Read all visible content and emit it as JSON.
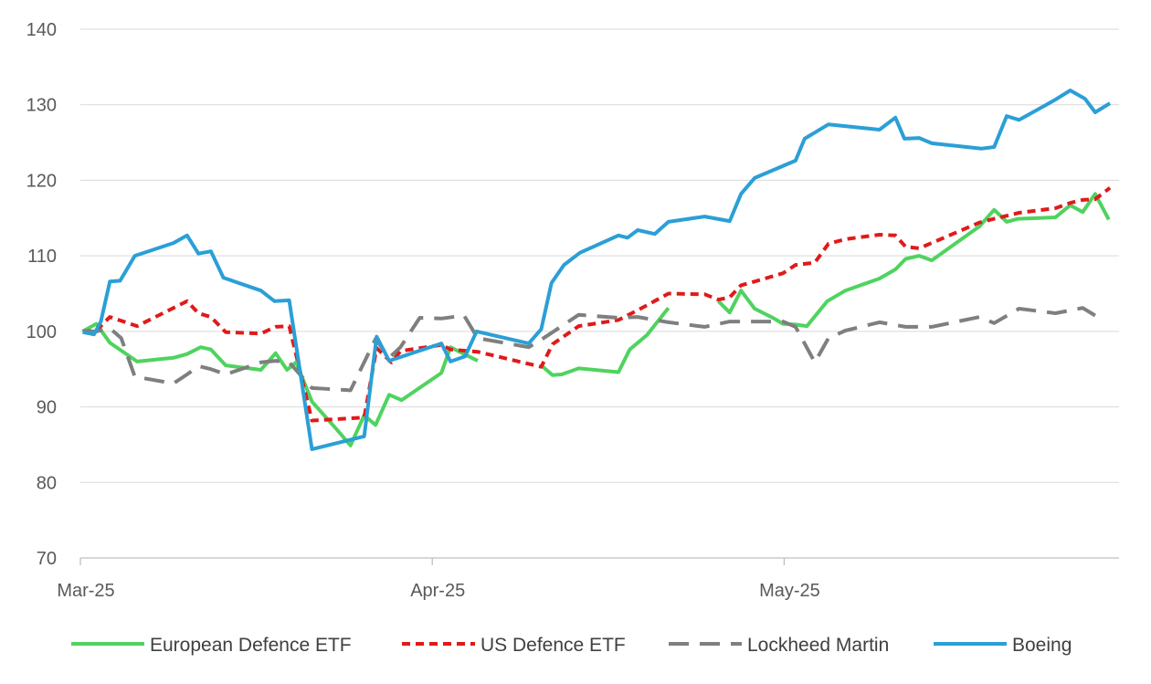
{
  "chart_data": {
    "type": "line",
    "title": "",
    "xlabel": "",
    "ylabel": "",
    "x_unit": "days since 1 Mar 2025",
    "xlim": [
      0,
      91.5
    ],
    "ylim": [
      70,
      140
    ],
    "y_ticks": [
      70,
      80,
      90,
      100,
      110,
      120,
      130,
      140
    ],
    "x_ticks": [
      {
        "x": 0,
        "label": "Mar-25"
      },
      {
        "x": 31,
        "label": "Apr-25"
      },
      {
        "x": 62,
        "label": "May-25"
      }
    ],
    "grid": "horizontal",
    "legend_position": "bottom",
    "series": [
      {
        "name": "European Defence ETF",
        "color": "#4fd35f",
        "dash": "solid",
        "points": [
          [
            0.2,
            100
          ],
          [
            1.4,
            101
          ],
          [
            2.6,
            98.5
          ],
          [
            5,
            96
          ],
          [
            8.2,
            96.5
          ],
          [
            9.4,
            97
          ],
          [
            10.6,
            97.9
          ],
          [
            11.5,
            97.6
          ],
          [
            12.8,
            95.5
          ],
          [
            15.9,
            94.9
          ],
          [
            17.2,
            97.1
          ],
          [
            18.2,
            94.9
          ],
          [
            19,
            95.9
          ],
          [
            20.4,
            90.7
          ],
          [
            22.6,
            87
          ],
          [
            23.8,
            84.9
          ],
          [
            25,
            88.9
          ],
          [
            26,
            87.6
          ],
          [
            27.2,
            91.6
          ],
          [
            28.3,
            90.9
          ],
          [
            31.8,
            94.5
          ],
          [
            32.6,
            97.9
          ],
          [
            35,
            96.1
          ],
          null,
          [
            40.6,
            95.5
          ],
          [
            41.6,
            94.2
          ],
          [
            42.4,
            94.3
          ],
          [
            43.9,
            95.1
          ],
          [
            47.4,
            94.6
          ],
          [
            48.4,
            97.6
          ],
          [
            49.9,
            99.5
          ],
          [
            51.8,
            103.1
          ],
          null,
          [
            56.2,
            104
          ],
          [
            57.2,
            102.5
          ],
          [
            58.2,
            105.4
          ],
          [
            59.4,
            103
          ],
          [
            61,
            101.8
          ],
          [
            61.9,
            101
          ],
          [
            63,
            100.9
          ],
          [
            64,
            100.7
          ],
          [
            65.8,
            104
          ],
          [
            67.4,
            105.4
          ],
          [
            70.4,
            107
          ],
          [
            71.8,
            108.2
          ],
          [
            72.7,
            109.6
          ],
          [
            73.9,
            110
          ],
          [
            75,
            109.4
          ],
          [
            79.2,
            113.9
          ],
          [
            80.5,
            116.1
          ],
          [
            81.6,
            114.5
          ],
          [
            82.6,
            114.9
          ],
          [
            85.9,
            115.1
          ],
          [
            87.2,
            116.7
          ],
          [
            88.3,
            115.8
          ],
          [
            89.4,
            118.2
          ],
          [
            90.6,
            114.8
          ]
        ]
      },
      {
        "name": "US Defence ETF",
        "color": "#e01a1a",
        "dash": "short",
        "points": [
          [
            0.2,
            100
          ],
          [
            1.4,
            100.1
          ],
          [
            2.6,
            101.9
          ],
          [
            5,
            100.7
          ],
          [
            9.4,
            104
          ],
          [
            10.4,
            102.4
          ],
          [
            11.5,
            101.9
          ],
          [
            12.8,
            99.9
          ],
          [
            15.9,
            99.7
          ],
          [
            17.2,
            100.6
          ],
          [
            18.4,
            100.7
          ],
          [
            20.4,
            88.2
          ],
          [
            25,
            88.6
          ],
          [
            26.1,
            97.8
          ],
          [
            27.4,
            95.9
          ],
          [
            28.2,
            97.4
          ],
          [
            31.8,
            98.2
          ],
          [
            32.6,
            97.6
          ],
          [
            35,
            97.3
          ],
          [
            40.6,
            95.3
          ],
          [
            41.6,
            98.3
          ],
          [
            43.9,
            100.7
          ],
          [
            47.4,
            101.5
          ],
          [
            49.1,
            102.8
          ],
          [
            51.8,
            105
          ],
          [
            55,
            104.9
          ],
          [
            56.2,
            104.2
          ],
          [
            57.2,
            104.5
          ],
          [
            58.2,
            106.1
          ],
          [
            59.4,
            106.6
          ],
          [
            61.9,
            107.7
          ],
          [
            63,
            108.8
          ],
          [
            64.7,
            109.1
          ],
          [
            65.9,
            111.6
          ],
          [
            67.4,
            112.2
          ],
          [
            70.4,
            112.8
          ],
          [
            71.8,
            112.7
          ],
          [
            72.7,
            111.2
          ],
          [
            73.9,
            111
          ],
          [
            79.2,
            114.4
          ],
          [
            80.5,
            114.9
          ],
          [
            82.7,
            115.7
          ],
          [
            85.9,
            116.3
          ],
          [
            87.2,
            117
          ],
          [
            88.3,
            117.4
          ],
          [
            89.4,
            117.5
          ],
          [
            90.7,
            119
          ]
        ]
      },
      {
        "name": "Lockheed Martin",
        "color": "#7f7f7f",
        "dash": "long",
        "points": [
          [
            0.2,
            100
          ],
          [
            1.4,
            100
          ],
          [
            2.6,
            100.4
          ],
          [
            3.6,
            99.1
          ],
          [
            4.8,
            94
          ],
          [
            8.2,
            93.1
          ],
          [
            9.4,
            94.3
          ],
          [
            10.4,
            95.4
          ],
          [
            11.5,
            95
          ],
          [
            12.8,
            94.3
          ],
          [
            15.9,
            95.9
          ],
          [
            17.2,
            96.1
          ],
          [
            18.4,
            95.9
          ],
          [
            20.4,
            92.5
          ],
          [
            23.8,
            92.2
          ],
          [
            26,
            99
          ],
          [
            27.2,
            96.5
          ],
          [
            28.2,
            97.9
          ],
          [
            29.9,
            101.8
          ],
          [
            31.8,
            101.7
          ],
          [
            33.8,
            102.1
          ],
          [
            35,
            99.1
          ],
          [
            39.5,
            97.9
          ],
          [
            40.6,
            98.9
          ],
          [
            43.9,
            102.2
          ],
          [
            47.4,
            101.8
          ],
          [
            49.1,
            101.9
          ],
          [
            51.8,
            101.2
          ],
          [
            55,
            100.6
          ],
          [
            57.2,
            101.3
          ],
          [
            61.9,
            101.3
          ],
          [
            63,
            100.6
          ],
          [
            64.7,
            95.9
          ],
          [
            65.9,
            99.1
          ],
          [
            67.4,
            100.1
          ],
          [
            70.4,
            101.2
          ],
          [
            72.7,
            100.6
          ],
          [
            75,
            100.6
          ],
          [
            79.2,
            101.9
          ],
          [
            80.5,
            101.1
          ],
          [
            82.7,
            103
          ],
          [
            85.9,
            102.4
          ],
          [
            88.3,
            103.1
          ],
          [
            89.4,
            102.1
          ]
        ]
      },
      {
        "name": "Boeing",
        "color": "#2b9fd6",
        "dash": "solid",
        "points": [
          [
            0.2,
            99.9
          ],
          [
            1.2,
            99.6
          ],
          [
            1.8,
            101.3
          ],
          [
            2.6,
            106.6
          ],
          [
            3.5,
            106.7
          ],
          [
            4.8,
            110
          ],
          [
            8.2,
            111.7
          ],
          [
            9.4,
            112.7
          ],
          [
            10.4,
            110.3
          ],
          [
            11.5,
            110.6
          ],
          [
            12.6,
            107.1
          ],
          [
            15.9,
            105.4
          ],
          [
            17.1,
            104
          ],
          [
            18.4,
            104.1
          ],
          [
            20.4,
            84.4
          ],
          [
            25,
            86.1
          ],
          [
            26.1,
            99.3
          ],
          [
            27.2,
            96.1
          ],
          [
            31.8,
            98.4
          ],
          [
            32.6,
            96
          ],
          [
            33.9,
            96.7
          ],
          [
            34.9,
            100
          ],
          [
            39.5,
            98.4
          ],
          [
            40.6,
            100.3
          ],
          [
            41.5,
            106.4
          ],
          [
            42.6,
            108.8
          ],
          [
            44,
            110.4
          ],
          [
            47.4,
            112.7
          ],
          [
            48.2,
            112.4
          ],
          [
            49.1,
            113.4
          ],
          [
            50.6,
            112.9
          ],
          [
            51.8,
            114.5
          ],
          [
            55,
            115.2
          ],
          [
            57.2,
            114.6
          ],
          [
            58.2,
            118.2
          ],
          [
            59.4,
            120.3
          ],
          [
            63,
            122.6
          ],
          [
            63.8,
            125.5
          ],
          [
            65.9,
            127.4
          ],
          [
            70.4,
            126.7
          ],
          [
            71.8,
            128.3
          ],
          [
            72.6,
            125.5
          ],
          [
            73.9,
            125.6
          ],
          [
            75,
            124.9
          ],
          [
            79.4,
            124.2
          ],
          [
            80.5,
            124.4
          ],
          [
            81.6,
            128.5
          ],
          [
            82.7,
            128
          ],
          [
            85.8,
            130.6
          ],
          [
            87.2,
            131.9
          ],
          [
            88.5,
            130.8
          ],
          [
            89.4,
            129
          ],
          [
            90.7,
            130.2
          ]
        ]
      }
    ]
  }
}
